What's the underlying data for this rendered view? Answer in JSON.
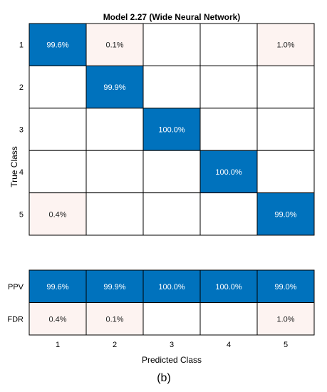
{
  "chart_data": {
    "type": "heatmap",
    "title": "Model 2.27 (Wide Neural Network)",
    "xlabel": "Predicted Class",
    "ylabel": "True Class",
    "classes": [
      "1",
      "2",
      "3",
      "4",
      "5"
    ],
    "matrix": [
      [
        "99.6%",
        "0.1%",
        "",
        "",
        "1.0%"
      ],
      [
        "",
        "99.9%",
        "",
        "",
        ""
      ],
      [
        "",
        "",
        "100.0%",
        "",
        ""
      ],
      [
        "",
        "",
        "",
        "100.0%",
        ""
      ],
      [
        "0.4%",
        "",
        "",
        "",
        "99.0%"
      ]
    ],
    "summary_rows": [
      {
        "label": "PPV",
        "values": [
          "99.6%",
          "99.9%",
          "100.0%",
          "100.0%",
          "99.0%"
        ]
      },
      {
        "label": "FDR",
        "values": [
          "0.4%",
          "0.1%",
          "",
          "",
          "1.0%"
        ]
      }
    ],
    "colors": {
      "high": "#0072BD",
      "low": "#FDF3F1",
      "empty": "#FFFFFF",
      "grid": "#000000"
    }
  },
  "caption": "(b)"
}
